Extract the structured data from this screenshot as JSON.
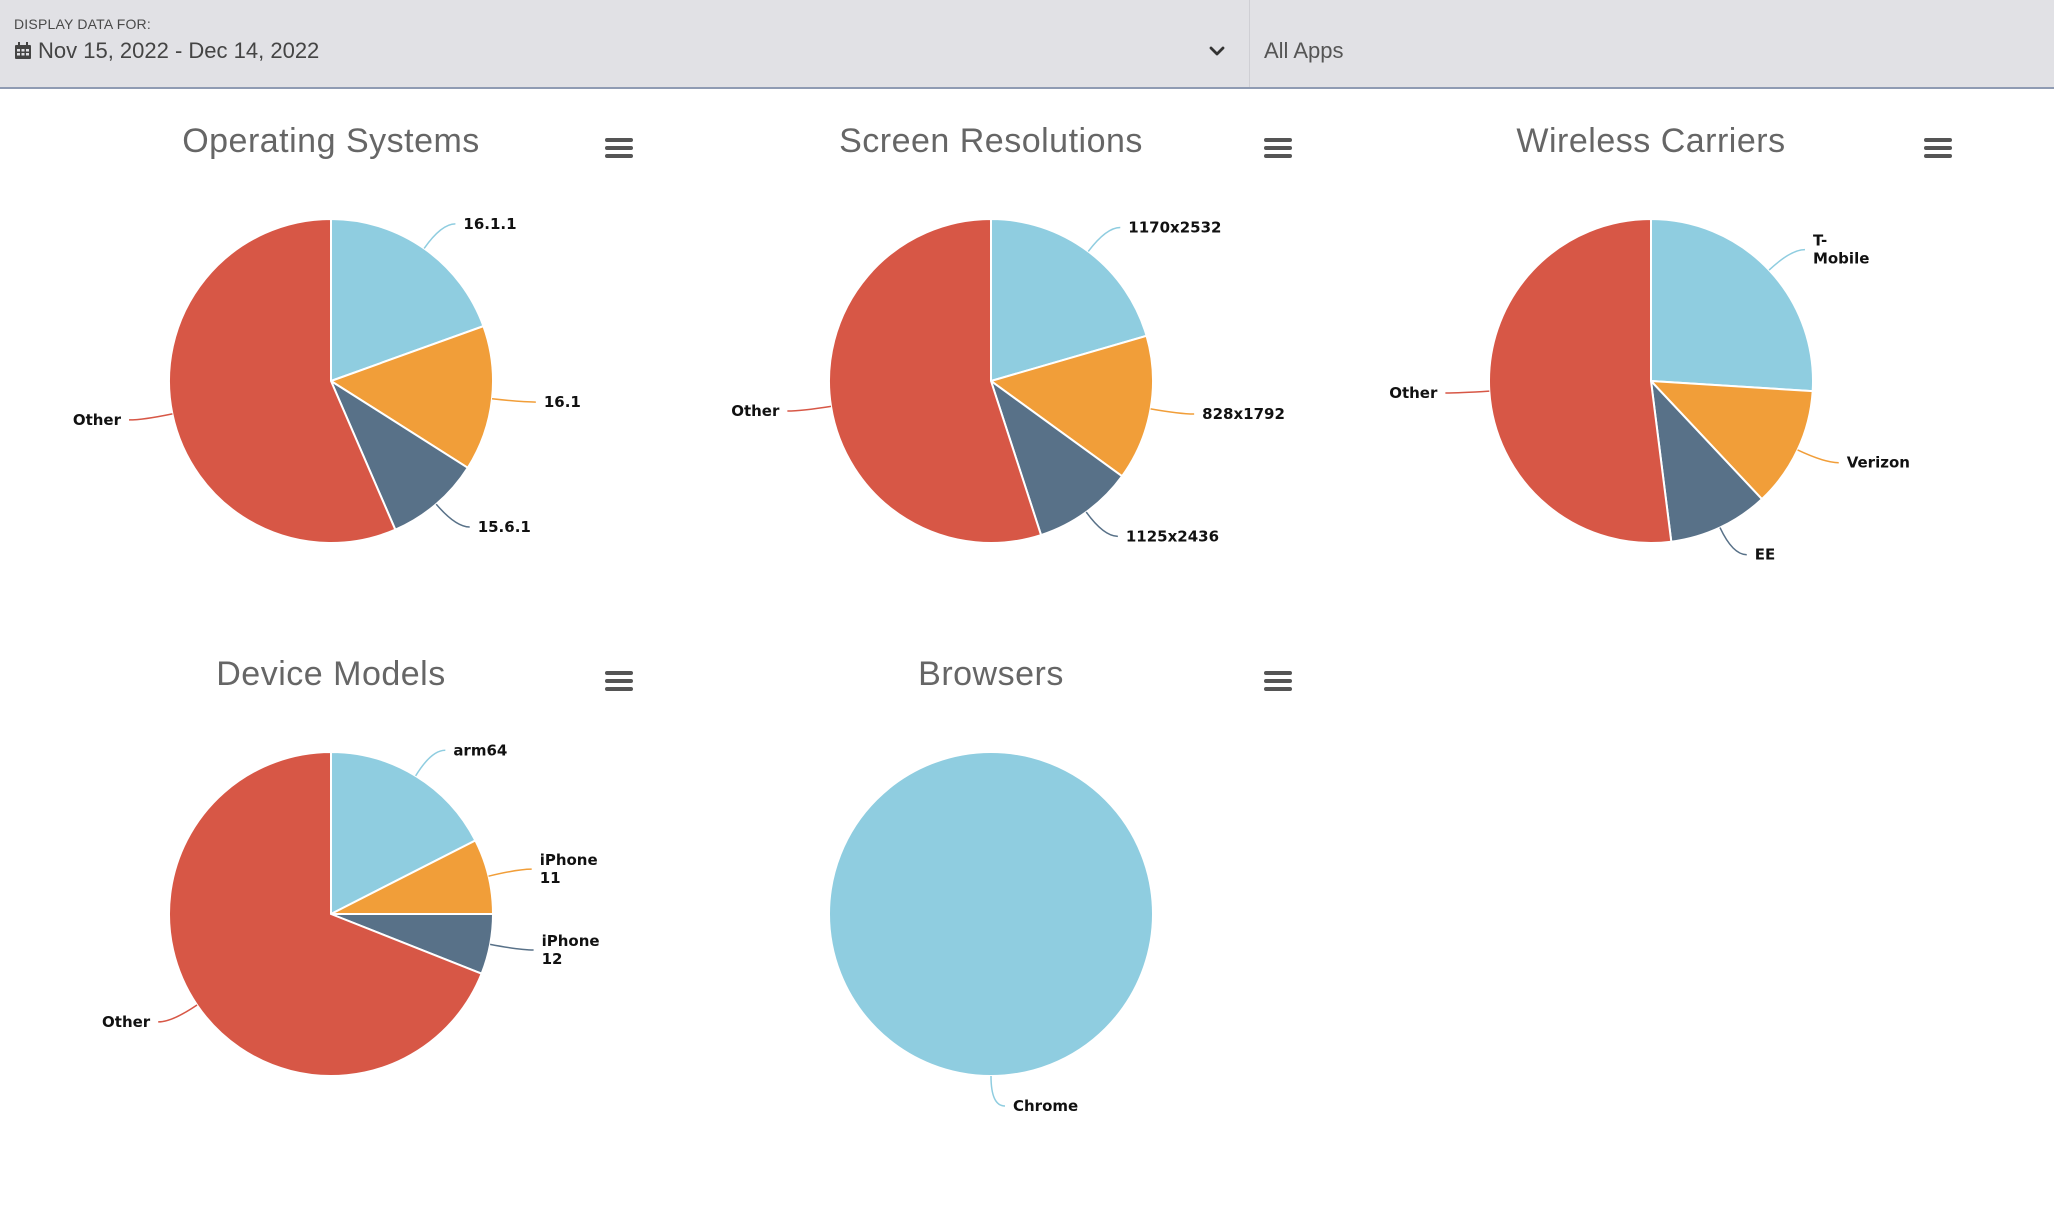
{
  "header": {
    "date_label": "DISPLAY DATA FOR:",
    "date_range": "Nov 15, 2022 - Dec 14, 2022",
    "apps": "All Apps",
    "calendar_icon": "calendar-icon",
    "dropdown_icon": "chevron-down-icon"
  },
  "colors": {
    "blue": "#8fcde0",
    "orange": "#f19e39",
    "slate": "#587188",
    "red": "#d75746"
  },
  "chart_data": [
    {
      "type": "pie",
      "title": "Operating Systems",
      "labels": [
        "16.1.1",
        "16.1",
        "15.6.1",
        "Other"
      ],
      "values": [
        19.5,
        14.5,
        9.5,
        56.5
      ],
      "colors": [
        "#8fcde0",
        "#f19e39",
        "#587188",
        "#d75746"
      ]
    },
    {
      "type": "pie",
      "title": "Screen Resolutions",
      "labels": [
        "1170x2532",
        "828x1792",
        "1125x2436",
        "Other"
      ],
      "values": [
        20.5,
        14.5,
        10.0,
        55.0
      ],
      "colors": [
        "#8fcde0",
        "#f19e39",
        "#587188",
        "#d75746"
      ]
    },
    {
      "type": "pie",
      "title": "Wireless Carriers",
      "labels": [
        "T-\nMobile",
        "Verizon",
        "EE",
        "Other"
      ],
      "values": [
        26.0,
        12.0,
        10.0,
        52.0
      ],
      "colors": [
        "#8fcde0",
        "#f19e39",
        "#587188",
        "#d75746"
      ]
    },
    {
      "type": "pie",
      "title": "Device Models",
      "labels": [
        "arm64",
        "iPhone\n11",
        "iPhone\n12",
        "Other"
      ],
      "values": [
        17.5,
        7.5,
        6.0,
        69.0
      ],
      "colors": [
        "#8fcde0",
        "#f19e39",
        "#587188",
        "#d75746"
      ]
    },
    {
      "type": "pie",
      "title": "Browsers",
      "labels": [
        "Chrome"
      ],
      "values": [
        100
      ],
      "colors": [
        "#8fcde0"
      ]
    }
  ]
}
